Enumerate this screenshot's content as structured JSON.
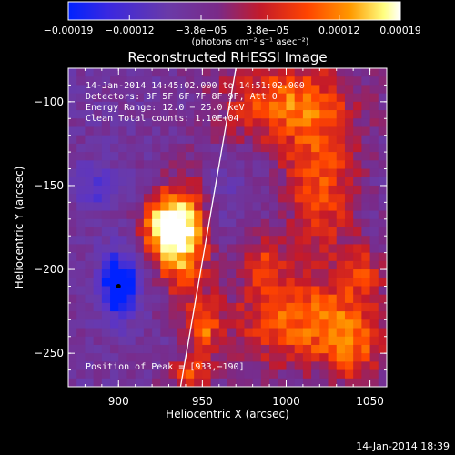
{
  "chart_data": {
    "type": "heatmap",
    "title": "Reconstructed RHESSI Image",
    "xlabel": "Heliocentric X (arcsec)",
    "ylabel": "Heliocentric Y (arcsec)",
    "xlim": [
      870,
      1060
    ],
    "ylim": [
      -270,
      -80
    ],
    "x_ticks": [
      900,
      950,
      1000,
      1050
    ],
    "y_ticks": [
      -100,
      -150,
      -200,
      -250
    ],
    "x_tick_labels": [
      "900",
      "950",
      "1000",
      "1050"
    ],
    "y_tick_labels": [
      "−100",
      "−150",
      "−200",
      "−250"
    ],
    "colorbar": {
      "tick_values": [
        -0.00019,
        -0.00012,
        -3.8e-05,
        3.8e-05,
        0.00012,
        0.00019
      ],
      "tick_labels": [
        "−0.00019",
        "−0.00012",
        "−3.8e−05",
        "3.8e−05",
        "0.00012",
        "0.00019"
      ],
      "units_label": "(photons cm⁻² s⁻¹ asec⁻²)",
      "colors": [
        "#0022ff",
        "#5a34c8",
        "#6a3aa8",
        "#7a2a88",
        "#c41a2a",
        "#ff4400",
        "#ff9a00",
        "#ffff80",
        "#ffffff"
      ]
    },
    "annotations": {
      "time_range": "14-Jan-2014 14:45:02.000 to 14:51:02.000",
      "detectors": "Detectors: 3F 5F 6F 7F 8F 9F, Att 0",
      "energy_range": "Energy Range: 12.0 − 25.0 keV",
      "clean_counts": "Clean    Total counts: 1.10E+04",
      "peak_position": "Position of Peak = [933,−190]"
    },
    "peak_position": [
      933,
      -190
    ],
    "limb_line": {
      "x": [
        937,
        970
      ],
      "y": [
        -270,
        -80
      ]
    },
    "blobs": [
      {
        "x": 938,
        "y": -180,
        "sx": 11,
        "sy": 22,
        "amp": 1.0
      },
      {
        "x": 925,
        "y": -175,
        "sx": 9,
        "sy": 13,
        "amp": 0.65
      },
      {
        "x": 950,
        "y": -235,
        "sx": 7,
        "sy": 12,
        "amp": 0.6
      },
      {
        "x": 942,
        "y": -262,
        "sx": 10,
        "sy": 7,
        "amp": 0.55
      },
      {
        "x": 1000,
        "y": -100,
        "sx": 28,
        "sy": 18,
        "amp": 0.65
      },
      {
        "x": 1020,
        "y": -150,
        "sx": 16,
        "sy": 28,
        "amp": 0.6
      },
      {
        "x": 985,
        "y": -195,
        "sx": 10,
        "sy": 10,
        "amp": 0.4
      },
      {
        "x": 1005,
        "y": -230,
        "sx": 28,
        "sy": 20,
        "amp": 0.65
      },
      {
        "x": 1040,
        "y": -245,
        "sx": 14,
        "sy": 18,
        "amp": 0.5
      },
      {
        "x": 1045,
        "y": -200,
        "sx": 10,
        "sy": 12,
        "amp": 0.4
      },
      {
        "x": 900,
        "y": -210,
        "sx": 8,
        "sy": 14,
        "amp": -0.9
      },
      {
        "x": 887,
        "y": -150,
        "sx": 9,
        "sy": 10,
        "amp": -0.45
      },
      {
        "x": 962,
        "y": -155,
        "sx": 8,
        "sy": 14,
        "amp": -0.15
      }
    ]
  },
  "footer": {
    "timestamp": "14-Jan-2014 18:39"
  }
}
